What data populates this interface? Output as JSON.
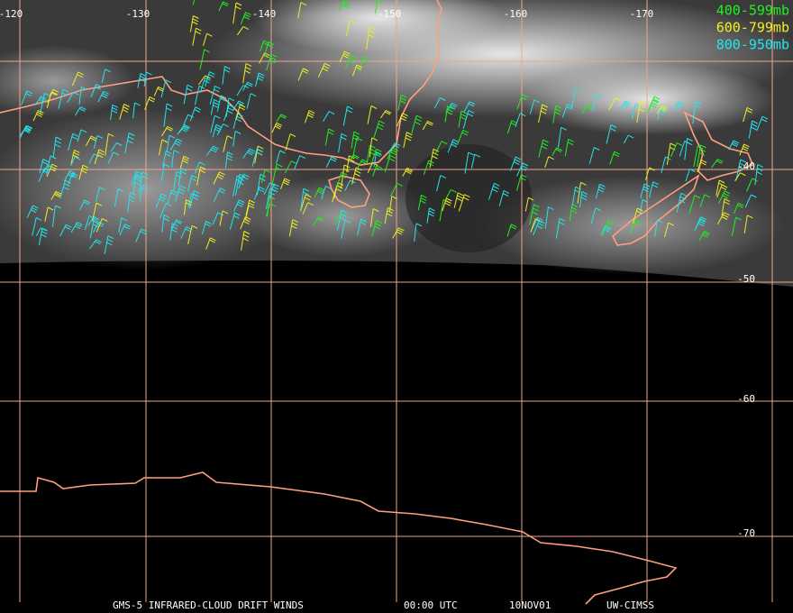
{
  "map": {
    "longitude_labels": [
      "-120",
      "-130",
      "-140",
      "-150",
      "-160",
      "-170"
    ],
    "latitude_labels": [
      "-40",
      "-50",
      "-60",
      "-70"
    ],
    "legend": [
      {
        "label": "400-599mb",
        "color": "#22ee22"
      },
      {
        "label": "600-799mb",
        "color": "#eeee22"
      },
      {
        "label": "800-950mb",
        "color": "#22e6ee"
      }
    ],
    "footer": [
      "GMS-5 INFRARED-CLOUD DRIFT WINDS",
      "00:00 UTC",
      "10NOV01",
      "UW-CIMSS"
    ]
  }
}
